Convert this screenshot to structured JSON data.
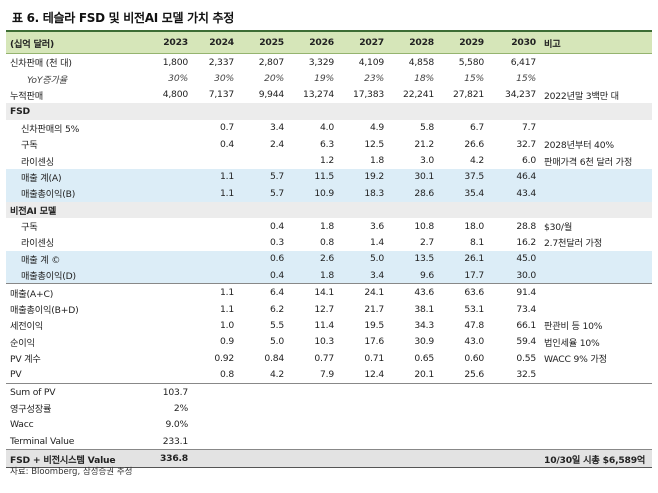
{
  "title": "표 6. 테슬라 FSD 및 비전AI 모델 가치 추정",
  "header": {
    "label": "(십억 달러)",
    "years": [
      "2023",
      "2024",
      "2025",
      "2026",
      "2027",
      "2028",
      "2029",
      "2030"
    ],
    "note": "비고"
  },
  "rows": [
    {
      "label": "신차판매 (천 대)",
      "values": [
        "1,800",
        "2,337",
        "2,807",
        "3,329",
        "4,109",
        "4,858",
        "5,580",
        "6,417"
      ],
      "note": "",
      "style": "plain",
      "indent": 0
    },
    {
      "label": "YoY증가율",
      "values": [
        "30%",
        "30%",
        "20%",
        "19%",
        "23%",
        "18%",
        "15%",
        "15%"
      ],
      "note": "",
      "style": "italic",
      "indent": 2
    },
    {
      "label": "누적판매",
      "values": [
        "4,800",
        "7,137",
        "9,944",
        "13,274",
        "17,383",
        "22,241",
        "27,821",
        "34,237"
      ],
      "note": "2022년말 3백만 대",
      "style": "plain",
      "indent": 0
    },
    {
      "label": "FSD",
      "values": [
        "",
        "",
        "",
        "",
        "",
        "",
        "",
        ""
      ],
      "note": "",
      "style": "section",
      "indent": 0
    },
    {
      "label": "신차판매의 5%",
      "values": [
        "",
        "0.7",
        "3.4",
        "4.0",
        "4.9",
        "5.8",
        "6.7",
        "7.7"
      ],
      "note": "",
      "style": "plain",
      "indent": 1
    },
    {
      "label": "구독",
      "values": [
        "",
        "0.4",
        "2.4",
        "6.3",
        "12.5",
        "21.2",
        "26.6",
        "32.7"
      ],
      "note": "2028년부터 40%",
      "style": "plain",
      "indent": 1
    },
    {
      "label": "라이센싱",
      "values": [
        "",
        "",
        "",
        "1.2",
        "1.8",
        "3.0",
        "4.2",
        "6.0"
      ],
      "note": "판매가격 6천 달러 가정",
      "style": "plain",
      "indent": 1
    },
    {
      "label": "매출 계(A)",
      "values": [
        "",
        "1.1",
        "5.7",
        "11.5",
        "19.2",
        "30.1",
        "37.5",
        "46.4"
      ],
      "note": "",
      "style": "hl",
      "indent": 1
    },
    {
      "label": "매출총이익(B)",
      "values": [
        "",
        "1.1",
        "5.7",
        "10.9",
        "18.3",
        "28.6",
        "35.4",
        "43.4"
      ],
      "note": "",
      "style": "hl",
      "indent": 1
    },
    {
      "label": "비전AI 모델",
      "values": [
        "",
        "",
        "",
        "",
        "",
        "",
        "",
        ""
      ],
      "note": "",
      "style": "section",
      "indent": 0
    },
    {
      "label": "구독",
      "values": [
        "",
        "",
        "0.4",
        "1.8",
        "3.6",
        "10.8",
        "18.0",
        "28.8"
      ],
      "note": "$30/월",
      "style": "plain",
      "indent": 1
    },
    {
      "label": "라이센싱",
      "values": [
        "",
        "",
        "0.3",
        "0.8",
        "1.4",
        "2.7",
        "8.1",
        "16.2"
      ],
      "note": "2.7천달러 가정",
      "style": "plain",
      "indent": 1
    },
    {
      "label": "매출 계 ©",
      "values": [
        "",
        "",
        "0.6",
        "2.6",
        "5.0",
        "13.5",
        "26.1",
        "45.0"
      ],
      "note": "",
      "style": "hl",
      "indent": 1
    },
    {
      "label": "매출총이익(D)",
      "values": [
        "",
        "",
        "0.4",
        "1.8",
        "3.4",
        "9.6",
        "17.7",
        "30.0"
      ],
      "note": "",
      "style": "hl",
      "indent": 1
    },
    {
      "label": "매출(A+C)",
      "values": [
        "",
        "1.1",
        "6.4",
        "14.1",
        "24.1",
        "43.6",
        "63.6",
        "91.4"
      ],
      "note": "",
      "style": "sep",
      "indent": 0
    },
    {
      "label": "매출총이익(B+D)",
      "values": [
        "",
        "1.1",
        "6.2",
        "12.7",
        "21.7",
        "38.1",
        "53.1",
        "73.4"
      ],
      "note": "",
      "style": "plain",
      "indent": 0
    },
    {
      "label": "세전이익",
      "values": [
        "",
        "1.0",
        "5.5",
        "11.4",
        "19.5",
        "34.3",
        "47.8",
        "66.1"
      ],
      "note": "판관비 등 10%",
      "style": "plain",
      "indent": 0
    },
    {
      "label": "순이익",
      "values": [
        "",
        "0.9",
        "5.0",
        "10.3",
        "17.6",
        "30.9",
        "43.0",
        "59.4"
      ],
      "note": "법인세율 10%",
      "style": "plain",
      "indent": 0
    },
    {
      "label": "PV 계수",
      "values": [
        "",
        "0.92",
        "0.84",
        "0.77",
        "0.71",
        "0.65",
        "0.60",
        "0.55"
      ],
      "note": "WACC 9% 가정",
      "style": "plain",
      "indent": 0
    },
    {
      "label": "PV",
      "values": [
        "",
        "0.8",
        "4.2",
        "7.9",
        "12.4",
        "20.1",
        "25.6",
        "32.5"
      ],
      "note": "",
      "style": "plain",
      "indent": 0
    },
    {
      "label": "Sum of PV",
      "values": [
        "103.7",
        "",
        "",
        "",
        "",
        "",
        "",
        ""
      ],
      "note": "",
      "style": "sep",
      "indent": 0
    },
    {
      "label": "영구성장률",
      "values": [
        "2%",
        "",
        "",
        "",
        "",
        "",
        "",
        ""
      ],
      "note": "",
      "style": "plain",
      "indent": 0
    },
    {
      "label": "Wacc",
      "values": [
        "9.0%",
        "",
        "",
        "",
        "",
        "",
        "",
        ""
      ],
      "note": "",
      "style": "plain",
      "indent": 0
    },
    {
      "label": "Terminal Value",
      "values": [
        "233.1",
        "",
        "",
        "",
        "",
        "",
        "",
        ""
      ],
      "note": "",
      "style": "plain",
      "indent": 0
    },
    {
      "label": "FSD + 비전시스템 Value",
      "values": [
        "336.8",
        "",
        "",
        "",
        "",
        "",
        "",
        ""
      ],
      "note": "10/30일 시총 $6,589억",
      "style": "total",
      "indent": 0
    }
  ],
  "source": "자료: Bloomberg, 삼성증권 추정"
}
